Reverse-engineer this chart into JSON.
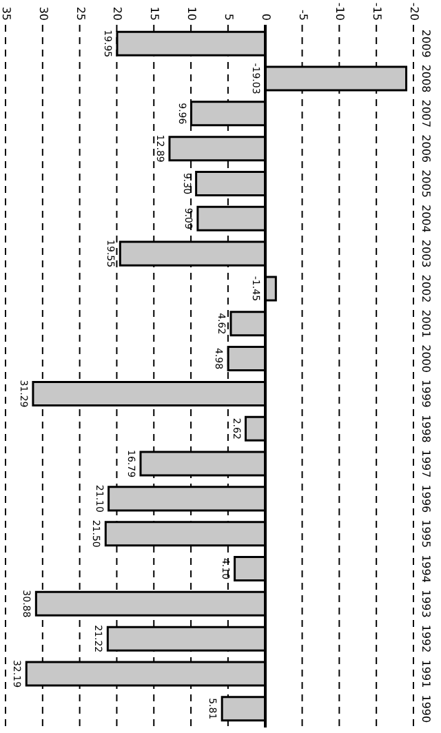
{
  "chart_data": {
    "type": "bar",
    "orientation": "horizontal",
    "categories": [
      "2009",
      "2008",
      "2007",
      "2006",
      "2005",
      "2004",
      "2003",
      "2002",
      "2001",
      "2000",
      "1999",
      "1998",
      "1997",
      "1996",
      "1995",
      "1994",
      "1993",
      "1992",
      "1991",
      "1990"
    ],
    "values": [
      19.95,
      -19.03,
      9.96,
      12.89,
      9.3,
      9.09,
      19.55,
      -1.45,
      4.62,
      4.98,
      31.29,
      2.62,
      16.79,
      21.1,
      21.5,
      4.1,
      30.88,
      21.22,
      32.19,
      5.81
    ],
    "value_labels": [
      "19.95",
      "-19.03",
      "9.96",
      "12.89",
      "9.30",
      "9.09",
      "19.55",
      "-1.45",
      "4.62",
      "4.98",
      "31.29",
      "2.62",
      "16.79",
      "21.10",
      "21.50",
      "4.10",
      "30.88",
      "21.22",
      "32.19",
      "5.81"
    ],
    "color": "#c8c8c8",
    "xlim": [
      35,
      -20
    ],
    "xticks": [
      35,
      30,
      25,
      20,
      15,
      10,
      5,
      0,
      -5,
      -10,
      -15,
      -20
    ],
    "ref_lines": [
      {
        "axis": "x",
        "value": 0,
        "color": "#000000",
        "line_style": "solid"
      }
    ],
    "grid": "x"
  }
}
